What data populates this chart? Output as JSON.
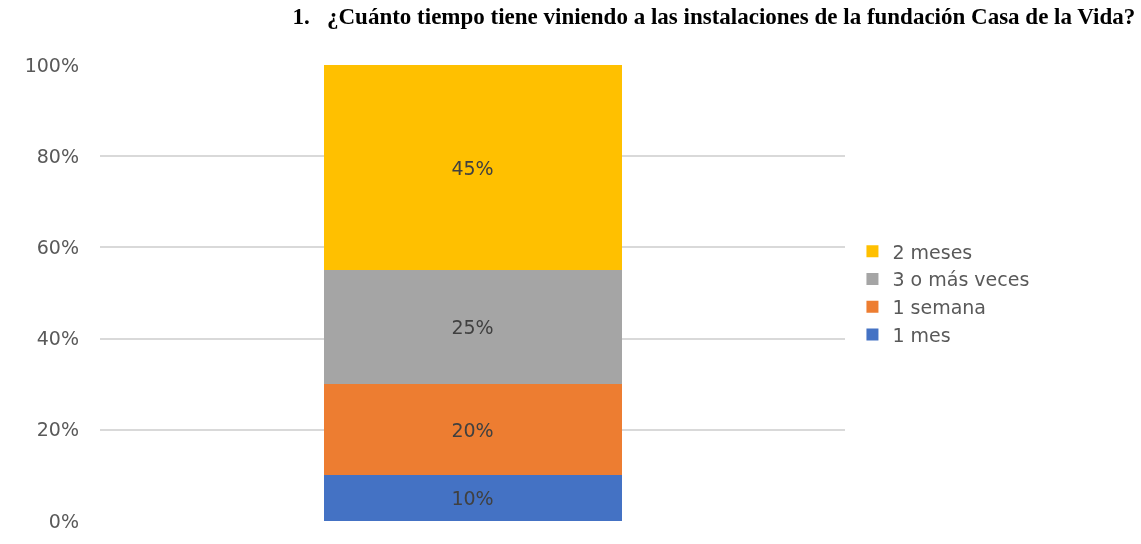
{
  "chart_data": {
    "type": "bar",
    "title": "1.   ¿Cuánto tiempo tiene viniendo a las instalaciones de la fundación Casa de la Vida?",
    "stacked": true,
    "categories": [
      null
    ],
    "series": [
      {
        "name": "1 mes",
        "color": "#4472c4",
        "values": [
          10
        ],
        "value_labels": [
          "10%"
        ]
      },
      {
        "name": "1 semana",
        "color": "#ed7d31",
        "values": [
          20
        ],
        "value_labels": [
          "20%"
        ]
      },
      {
        "name": "3 o más veces",
        "color": "#a5a5a5",
        "values": [
          25
        ],
        "value_labels": [
          "25%"
        ]
      },
      {
        "name": "2 meses",
        "color": "#ffc000",
        "values": [
          45
        ],
        "value_labels": [
          "45%"
        ]
      }
    ],
    "ylim": [
      0,
      100
    ],
    "yticks": [
      {
        "value": 0,
        "label": "0%"
      },
      {
        "value": 20,
        "label": "20%"
      },
      {
        "value": 40,
        "label": "40%"
      },
      {
        "value": 60,
        "label": "60%"
      },
      {
        "value": 80,
        "label": "80%"
      },
      {
        "value": 100,
        "label": "100%"
      }
    ],
    "grid": "y",
    "legend": "right"
  }
}
